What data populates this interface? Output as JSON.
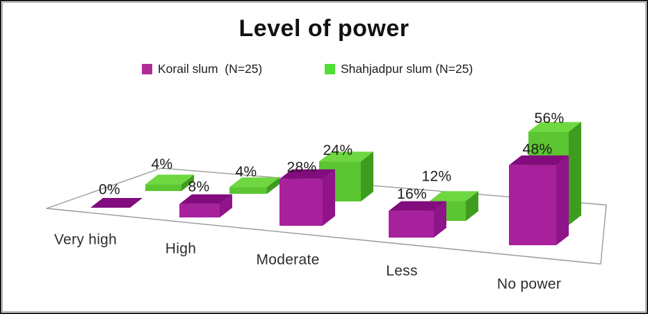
{
  "window": {
    "background": "#FFFFFF",
    "frame_color": "#1B1B1B",
    "inner_line_color": "#9C9C9C"
  },
  "chart_data": {
    "type": "bar",
    "style": "3d-clustered-column",
    "title": "Level of power",
    "categories": [
      "Very high",
      "High",
      "Moderate",
      "Less",
      "No power"
    ],
    "series": [
      {
        "name": "Korail slum  (N=25)",
        "values": [
          0,
          8,
          28,
          16,
          48
        ],
        "color_front": "#A8219C",
        "color_top": "#820C7D",
        "color_side": "#8F1489",
        "legend_swatch": "#B02C97"
      },
      {
        "name": "Shahjadpur slum (N=25)",
        "values": [
          4,
          4,
          24,
          12,
          56
        ],
        "color_front": "#5BC631",
        "color_top": "#6FD840",
        "color_side": "#3E9C1E",
        "legend_swatch": "#52DE38"
      }
    ],
    "value_suffix": "%",
    "data_labels": true,
    "ylim": [
      0,
      60
    ],
    "xlabel": "",
    "ylabel": "",
    "legend_position": "top",
    "grid": false,
    "floor_outline_color": "#9A9A9A",
    "text_color": "#1C1C1C",
    "category_label_color": "#2D2D2D"
  }
}
